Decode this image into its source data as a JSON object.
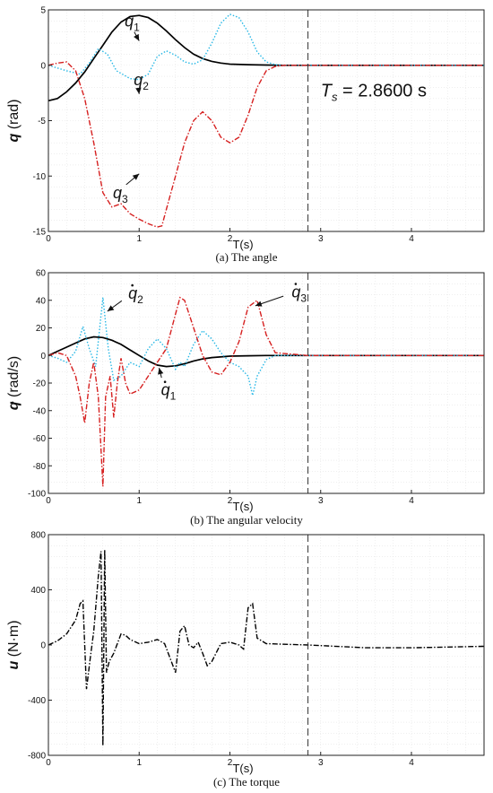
{
  "captions": {
    "a": "(a) The angle",
    "b": "(b) The angular velocity",
    "c": "(c) The torque"
  },
  "chart_data": [
    {
      "type": "line",
      "panel": "a",
      "xlabel": "T(s)",
      "ylabel_sym": "q",
      "ylabel_unit": "(rad)",
      "xlim": [
        0,
        4.8
      ],
      "ylim": [
        -15,
        5
      ],
      "xticks": [
        0,
        1,
        2,
        3,
        4
      ],
      "yticks": [
        5,
        0,
        -5,
        -10,
        -15
      ],
      "grid": true,
      "vline_x": 2.86,
      "annotation": {
        "lhs": "T",
        "sub": "s",
        "text": " = 2.8600 s"
      },
      "series": [
        {
          "name": "1",
          "color": "#000000",
          "dash": "solid",
          "x": [
            0,
            0.1,
            0.2,
            0.3,
            0.4,
            0.5,
            0.6,
            0.7,
            0.8,
            0.9,
            1.0,
            1.1,
            1.2,
            1.3,
            1.4,
            1.5,
            1.6,
            1.7,
            1.8,
            1.9,
            2.0,
            2.2,
            2.4,
            2.6,
            2.86,
            3.5,
            4.8
          ],
          "y": [
            -3.2,
            -3.0,
            -2.4,
            -1.6,
            -0.6,
            0.6,
            1.8,
            3.0,
            3.9,
            4.4,
            4.5,
            4.3,
            3.8,
            3.1,
            2.3,
            1.6,
            1.0,
            0.6,
            0.35,
            0.2,
            0.1,
            0.05,
            0.02,
            0,
            0,
            0,
            0
          ]
        },
        {
          "name": "2",
          "color": "#27b8e6",
          "dash": "dot",
          "x": [
            0,
            0.2,
            0.35,
            0.45,
            0.55,
            0.65,
            0.75,
            0.9,
            1.0,
            1.1,
            1.2,
            1.3,
            1.4,
            1.5,
            1.6,
            1.7,
            1.8,
            1.9,
            2.0,
            2.1,
            2.2,
            2.3,
            2.4,
            2.5,
            2.6,
            2.86,
            3.5,
            4.8
          ],
          "y": [
            0,
            -0.5,
            -0.8,
            0.2,
            1.5,
            1.0,
            -0.5,
            -1.2,
            -1.3,
            -0.8,
            0.8,
            1.3,
            0.9,
            0.3,
            0.1,
            0.5,
            2.0,
            3.8,
            4.6,
            4.3,
            3.0,
            1.2,
            0.3,
            0.05,
            0,
            0,
            0,
            0
          ]
        },
        {
          "name": "3",
          "color": "#d62020",
          "dash": "dashdot",
          "x": [
            0,
            0.1,
            0.2,
            0.3,
            0.4,
            0.5,
            0.6,
            0.7,
            0.8,
            0.9,
            1.0,
            1.1,
            1.2,
            1.25,
            1.3,
            1.4,
            1.5,
            1.6,
            1.7,
            1.8,
            1.9,
            2.0,
            2.1,
            2.2,
            2.3,
            2.4,
            2.5,
            2.6,
            2.7,
            2.86,
            3.5,
            4.8
          ],
          "y": [
            0,
            0.2,
            0.3,
            -0.5,
            -3.0,
            -7.0,
            -11.5,
            -12.8,
            -12.5,
            -13.4,
            -13.9,
            -14.3,
            -14.6,
            -14.5,
            -13.0,
            -10.0,
            -7.0,
            -5.0,
            -4.2,
            -5.0,
            -6.5,
            -7.0,
            -6.5,
            -4.5,
            -2.0,
            -0.5,
            -0.1,
            0,
            0,
            0,
            0,
            0
          ]
        }
      ],
      "labels": [
        {
          "series": "1",
          "ax": 1.0,
          "ay": 2.2,
          "tx": 0.88,
          "ty": 4.0
        },
        {
          "series": "2",
          "ax": 1.0,
          "ay": -2.6,
          "tx": 0.98,
          "ty": -1.3
        },
        {
          "series": "3",
          "ax": 1.0,
          "ay": -9.8,
          "tx": 0.75,
          "ty": -11.5
        }
      ]
    },
    {
      "type": "line",
      "panel": "b",
      "xlabel": "T(s)",
      "ylabel_sym": "q",
      "ylabel_unit": "(rad/s)",
      "dot": true,
      "xlim": [
        0,
        4.8
      ],
      "ylim": [
        -100,
        60
      ],
      "xticks": [
        0,
        1,
        2,
        3,
        4
      ],
      "yticks": [
        60,
        40,
        20,
        0,
        -20,
        -40,
        -60,
        -80,
        -100
      ],
      "grid": true,
      "vline_x": 2.86,
      "series": [
        {
          "name": "1",
          "color": "#000000",
          "dash": "solid",
          "x": [
            0,
            0.1,
            0.2,
            0.3,
            0.4,
            0.5,
            0.6,
            0.7,
            0.8,
            0.9,
            1.0,
            1.1,
            1.2,
            1.3,
            1.4,
            1.5,
            1.6,
            1.7,
            1.8,
            2.0,
            2.2,
            2.4,
            2.6,
            2.86,
            3.5,
            4.8
          ],
          "y": [
            0,
            3,
            6,
            9,
            12,
            13.5,
            13,
            11,
            8,
            4,
            0,
            -4,
            -7,
            -8,
            -7.5,
            -6,
            -4,
            -2.5,
            -1.5,
            -0.5,
            -0.2,
            0,
            0,
            0,
            0,
            0
          ]
        },
        {
          "name": "2",
          "color": "#27b8e6",
          "dash": "dot",
          "x": [
            0,
            0.1,
            0.2,
            0.3,
            0.38,
            0.45,
            0.52,
            0.6,
            0.66,
            0.72,
            0.8,
            0.9,
            1.0,
            1.1,
            1.2,
            1.3,
            1.4,
            1.45,
            1.5,
            1.55,
            1.6,
            1.7,
            1.8,
            1.9,
            2.0,
            2.1,
            2.2,
            2.25,
            2.3,
            2.4,
            2.5,
            2.6,
            2.86,
            3.5,
            4.8
          ],
          "y": [
            0,
            -2,
            -5,
            3,
            21,
            5,
            -8,
            42,
            5,
            -18,
            -15,
            -5,
            -8,
            5,
            12,
            5,
            -10,
            -5,
            -8,
            0,
            8,
            18,
            12,
            2,
            -5,
            -8,
            -15,
            -29,
            -15,
            -3,
            0,
            0,
            0,
            0,
            0
          ]
        },
        {
          "name": "3",
          "color": "#d62020",
          "dash": "dashdot",
          "x": [
            0,
            0.1,
            0.2,
            0.3,
            0.35,
            0.4,
            0.45,
            0.5,
            0.55,
            0.6,
            0.63,
            0.68,
            0.72,
            0.76,
            0.8,
            0.85,
            0.9,
            1.0,
            1.1,
            1.2,
            1.3,
            1.4,
            1.45,
            1.5,
            1.6,
            1.7,
            1.8,
            1.9,
            2.0,
            2.1,
            2.2,
            2.3,
            2.4,
            2.5,
            2.86,
            3.5,
            4.8
          ],
          "y": [
            0,
            2,
            0,
            -15,
            -30,
            -49,
            -20,
            -5,
            -30,
            -95,
            -30,
            -15,
            -45,
            -20,
            -2,
            -20,
            -28,
            -25,
            -15,
            -5,
            5,
            30,
            42,
            40,
            20,
            0,
            -12,
            -14,
            -5,
            10,
            35,
            40,
            15,
            2,
            0,
            0,
            0
          ]
        }
      ],
      "labels": [
        {
          "series": "2",
          "ax": 0.65,
          "ay": 32,
          "tx": 0.92,
          "ty": 45
        },
        {
          "series": "1",
          "ax": 1.22,
          "ay": -9,
          "tx": 1.28,
          "ty": -25
        },
        {
          "series": "3",
          "ax": 2.28,
          "ay": 36,
          "tx": 2.72,
          "ty": 46
        }
      ]
    },
    {
      "type": "line",
      "panel": "c",
      "xlabel": "T(s)",
      "ylabel_sym": "u",
      "ylabel_unit": "(N·m)",
      "xlim": [
        0,
        4.8
      ],
      "ylim": [
        -800,
        800
      ],
      "xticks": [
        0,
        1,
        2,
        3,
        4
      ],
      "yticks": [
        800,
        400,
        0,
        -400,
        -800
      ],
      "grid": true,
      "vline_x": 2.86,
      "series": [
        {
          "name": "u",
          "color": "#000000",
          "dash": "dashdot",
          "x": [
            0,
            0.1,
            0.2,
            0.3,
            0.35,
            0.38,
            0.42,
            0.46,
            0.5,
            0.55,
            0.58,
            0.6,
            0.62,
            0.64,
            0.67,
            0.72,
            0.8,
            0.85,
            0.9,
            1.0,
            1.1,
            1.2,
            1.28,
            1.32,
            1.4,
            1.45,
            1.5,
            1.55,
            1.6,
            1.65,
            1.7,
            1.75,
            1.8,
            1.9,
            2.0,
            2.1,
            2.15,
            2.2,
            2.25,
            2.3,
            2.4,
            2.6,
            2.86,
            3.5,
            4.0,
            4.8
          ],
          "y": [
            0,
            30,
            80,
            180,
            300,
            320,
            -320,
            -100,
            100,
            500,
            680,
            -730,
            690,
            -200,
            -120,
            -60,
            80,
            70,
            40,
            10,
            20,
            40,
            10,
            -60,
            -200,
            100,
            140,
            0,
            -20,
            20,
            -60,
            -150,
            -120,
            10,
            20,
            0,
            -30,
            270,
            300,
            50,
            10,
            5,
            0,
            -20,
            -20,
            -10
          ]
        }
      ],
      "labels": []
    }
  ]
}
